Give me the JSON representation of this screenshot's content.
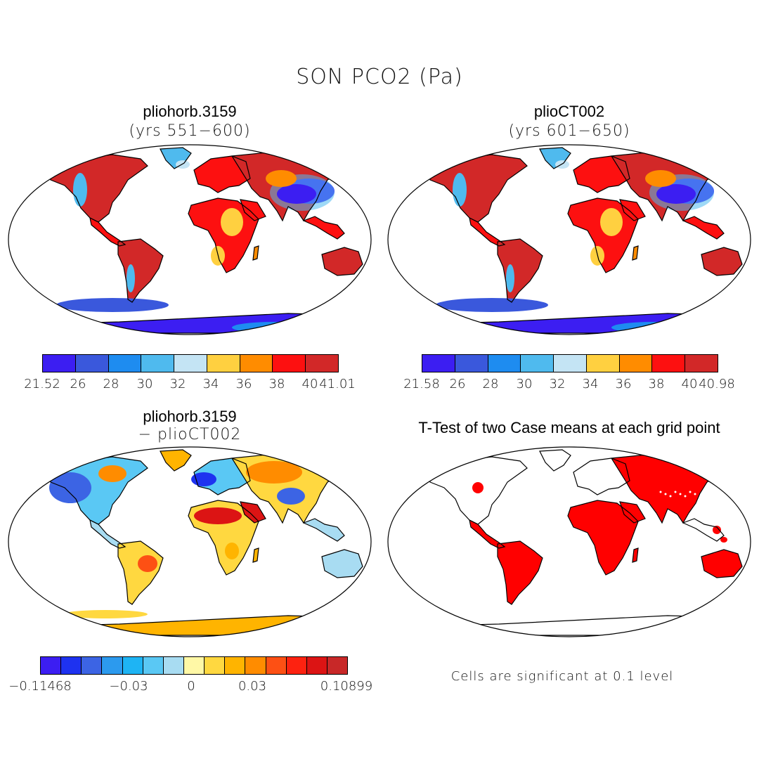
{
  "title": "SON PCO2 (Pa)",
  "colors": {
    "seq": [
      "#3c1ef2",
      "#3a58dc",
      "#1e8cf0",
      "#4fbaee",
      "#c4e4f4",
      "#ffd040",
      "#ff8c00",
      "#fd1010",
      "#d22828"
    ],
    "div": [
      "#3c1ef2",
      "#1e32f0",
      "#3c64e4",
      "#2c9aee",
      "#1eb4f4",
      "#5ac8f4",
      "#a8dcf2",
      "#fff8a6",
      "#ffd840",
      "#ffb400",
      "#ff8c00",
      "#fd5014",
      "#fd2210",
      "#dc1414",
      "#c82828"
    ],
    "signif": "#ff0000",
    "ocean": "#ffffff"
  },
  "panels": [
    {
      "name": "pliohorb-map",
      "title": "pliohorb.3159",
      "subtitle": "(yrs 551−600)",
      "colorbar": {
        "ticks": [
          "21.52",
          "26",
          "28",
          "30",
          "32",
          "34",
          "36",
          "38",
          "40",
          "41.01"
        ]
      }
    },
    {
      "name": "plioct002-map",
      "title": "plioCT002",
      "subtitle": "(yrs 601−650)",
      "colorbar": {
        "ticks": [
          "21.58",
          "26",
          "28",
          "30",
          "32",
          "34",
          "36",
          "38",
          "40",
          "40.98"
        ]
      }
    },
    {
      "name": "difference-map",
      "title": "pliohorb.3159",
      "subtitle": "− plioCT002",
      "colorbar": {
        "ticks": [
          "−0.11468",
          "−0.03",
          "0",
          "0.03",
          "0.10899"
        ]
      }
    },
    {
      "name": "ttest-map",
      "title": "T-Test of two Case means at each grid point",
      "note": "Cells are significant at 0.1 level"
    }
  ]
}
